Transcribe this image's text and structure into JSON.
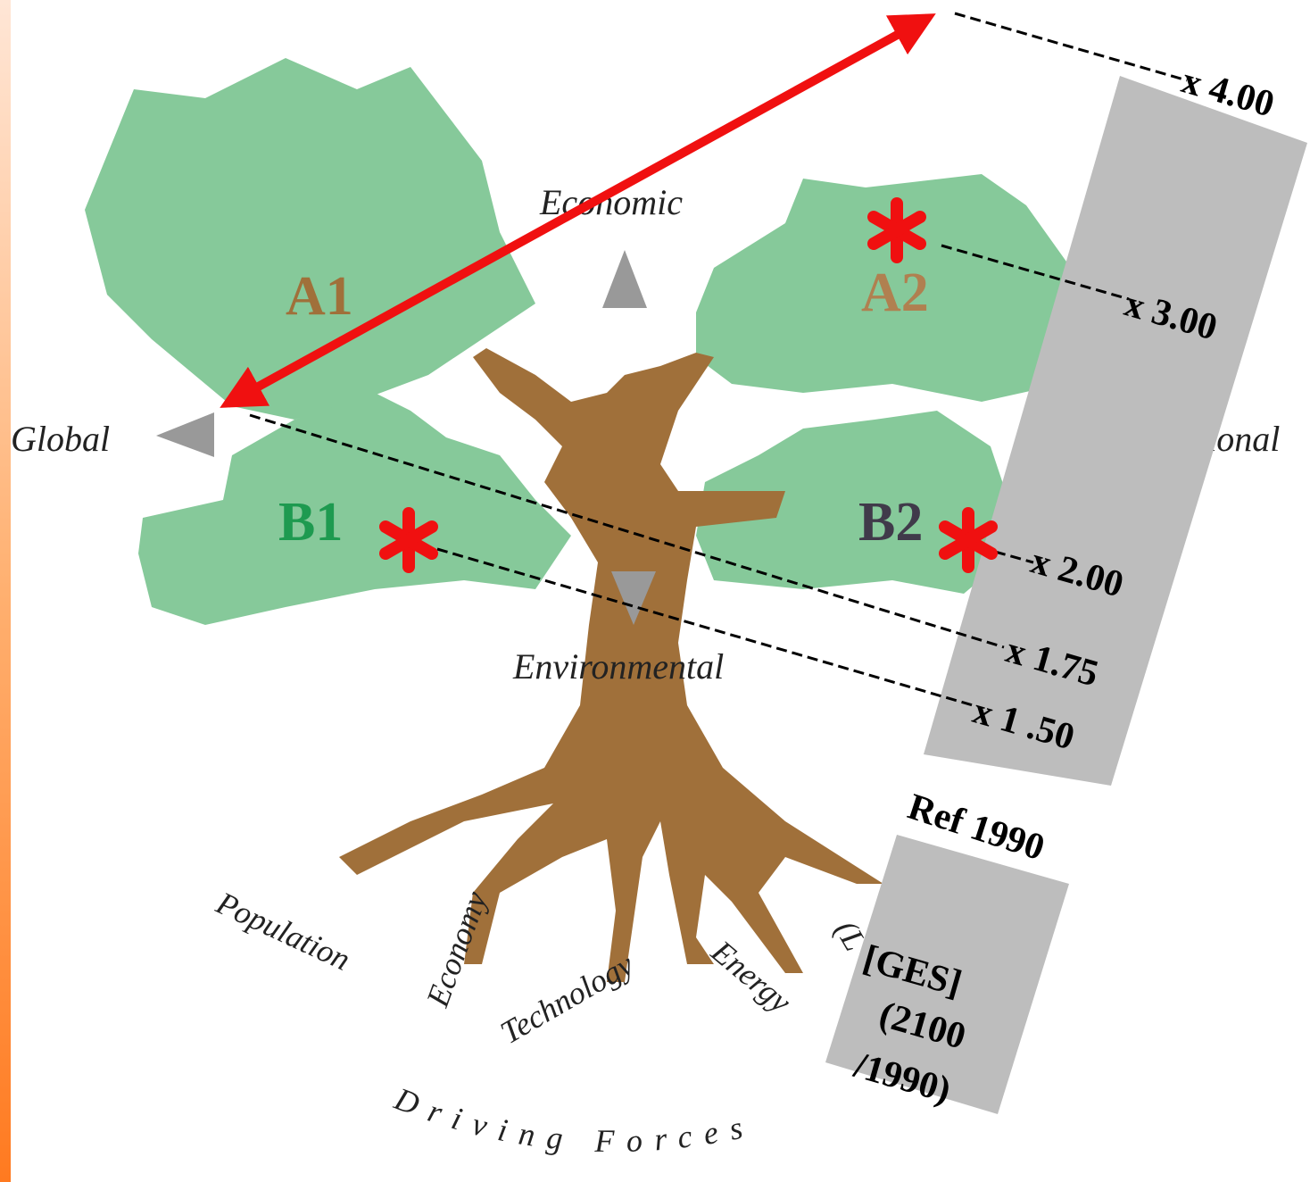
{
  "header": {
    "axes": {
      "top": "Economic",
      "left": "Global",
      "right": "Regional",
      "bottom": "Environmental"
    }
  },
  "scenarios": [
    "A1",
    "A2",
    "B1",
    "B2"
  ],
  "multipliers": [
    "x 4.00",
    "x 3.00",
    "x 2.00",
    "x 1.75",
    "x 1 .50"
  ],
  "reference": "Ref 1990",
  "ges": {
    "title": "[GES]",
    "line1": "(2100",
    "line2": "/1990)"
  },
  "roots": [
    "Population",
    "Economy",
    "Technology",
    "Energy",
    "(L"
  ],
  "footer": "Driving Forces"
}
